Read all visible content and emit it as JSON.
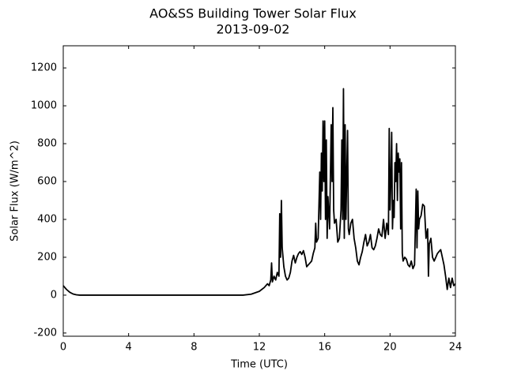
{
  "chart_data": {
    "type": "line",
    "title": "AO&SS Building Tower Solar Flux",
    "subtitle": "2013-09-02",
    "x_label": "Time (UTC)",
    "y_label": "Solar Flux (W/m^2)",
    "color": "#000000",
    "xlim": [
      0,
      24
    ],
    "xticks": [
      0,
      4,
      8,
      12,
      16,
      20,
      24
    ],
    "ylim": [
      -217,
      1317
    ],
    "yticks": [
      -200,
      0,
      200,
      400,
      600,
      800,
      1000,
      1200
    ],
    "x": [
      0,
      0.2,
      0.4,
      0.6,
      0.8,
      1,
      11,
      11.5,
      12,
      12.3,
      12.5,
      12.6,
      12.7,
      12.75,
      12.8,
      12.9,
      13.0,
      13.1,
      13.2,
      13.25,
      13.3,
      13.35,
      13.4,
      13.5,
      13.6,
      13.7,
      13.8,
      13.9,
      14.0,
      14.1,
      14.2,
      14.3,
      14.4,
      14.5,
      14.6,
      14.7,
      14.8,
      14.9,
      15.0,
      15.1,
      15.2,
      15.3,
      15.4,
      15.45,
      15.5,
      15.6,
      15.7,
      15.75,
      15.8,
      15.85,
      15.9,
      15.95,
      16.0,
      16.05,
      16.1,
      16.15,
      16.2,
      16.3,
      16.4,
      16.45,
      16.5,
      16.55,
      16.6,
      16.7,
      16.8,
      16.9,
      17.0,
      17.05,
      17.1,
      17.15,
      17.2,
      17.25,
      17.3,
      17.4,
      17.45,
      17.5,
      17.6,
      17.7,
      17.8,
      17.9,
      18.0,
      18.1,
      18.2,
      18.3,
      18.4,
      18.5,
      18.6,
      18.7,
      18.8,
      18.9,
      19.0,
      19.1,
      19.2,
      19.3,
      19.4,
      19.5,
      19.6,
      19.7,
      19.8,
      19.9,
      19.95,
      20.0,
      20.05,
      20.1,
      20.15,
      20.2,
      20.25,
      20.3,
      20.35,
      20.4,
      20.45,
      20.5,
      20.55,
      20.6,
      20.65,
      20.7,
      20.75,
      20.8,
      20.9,
      21.0,
      21.1,
      21.2,
      21.3,
      21.4,
      21.5,
      21.6,
      21.65,
      21.7,
      21.75,
      21.8,
      21.9,
      22.0,
      22.1,
      22.2,
      22.3,
      22.35,
      22.4,
      22.5,
      22.6,
      22.7,
      22.8,
      22.9,
      23.0,
      23.1,
      23.2,
      23.3,
      23.4,
      23.5,
      23.6,
      23.7,
      23.8,
      23.9,
      24.0
    ],
    "values": [
      50,
      30,
      15,
      6,
      2,
      0,
      0,
      5,
      20,
      40,
      60,
      50,
      80,
      170,
      70,
      100,
      80,
      120,
      100,
      430,
      200,
      500,
      250,
      150,
      100,
      80,
      90,
      120,
      180,
      210,
      170,
      200,
      220,
      230,
      215,
      235,
      200,
      150,
      160,
      170,
      180,
      220,
      250,
      380,
      280,
      300,
      650,
      400,
      750,
      550,
      920,
      600,
      920,
      400,
      820,
      300,
      520,
      350,
      900,
      600,
      990,
      450,
      380,
      400,
      280,
      300,
      450,
      820,
      400,
      1090,
      300,
      900,
      400,
      870,
      350,
      320,
      380,
      400,
      300,
      250,
      180,
      160,
      200,
      230,
      280,
      320,
      260,
      280,
      320,
      250,
      240,
      260,
      300,
      350,
      320,
      310,
      400,
      300,
      380,
      320,
      880,
      450,
      600,
      860,
      350,
      500,
      410,
      700,
      600,
      800,
      500,
      750,
      650,
      720,
      350,
      700,
      220,
      180,
      200,
      190,
      160,
      150,
      180,
      140,
      160,
      560,
      250,
      550,
      350,
      400,
      420,
      480,
      470,
      300,
      350,
      100,
      270,
      300,
      200,
      180,
      200,
      220,
      230,
      240,
      200,
      160,
      100,
      30,
      90,
      40,
      90,
      50,
      60
    ]
  }
}
